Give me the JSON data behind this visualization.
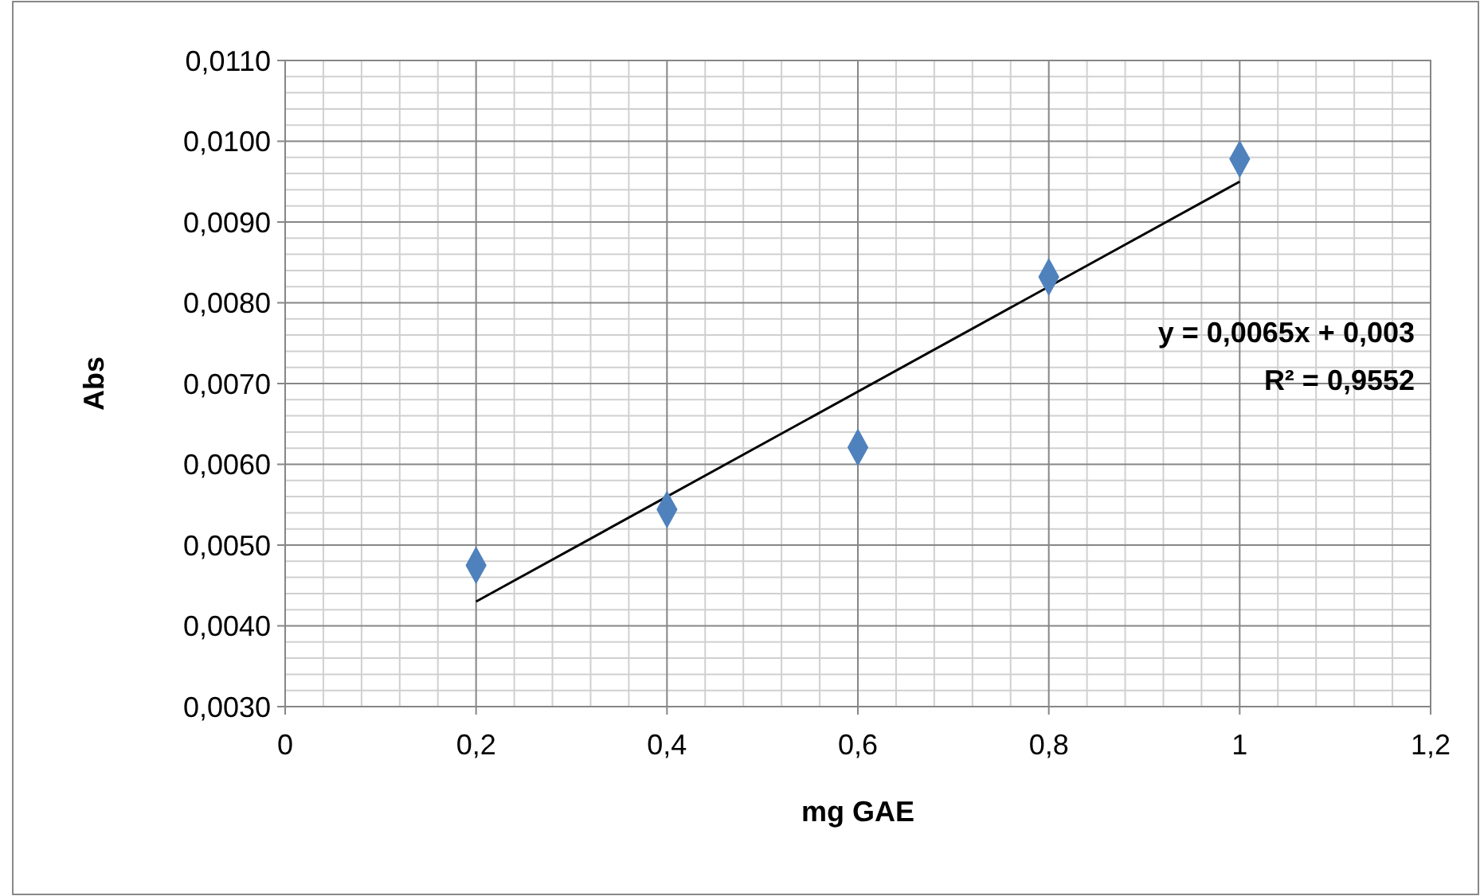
{
  "chart_data": {
    "type": "scatter",
    "xlabel": "mg GAE",
    "ylabel": "Abs",
    "xlim": [
      0,
      1.2
    ],
    "xticks": [
      0,
      {
        "value": 0.2,
        "label": "0,2"
      },
      {
        "value": 0.4,
        "label": "0,4"
      },
      {
        "value": 0.6,
        "label": "0,6"
      },
      {
        "value": 0.8,
        "label": "0,8"
      },
      1,
      {
        "value": 1.2,
        "label": "1,2"
      }
    ],
    "ylim": [
      0.003,
      0.011
    ],
    "yticks": [
      {
        "value": 0.003,
        "label": "0,0030"
      },
      {
        "value": 0.004,
        "label": "0,0040"
      },
      {
        "value": 0.005,
        "label": "0,0050"
      },
      {
        "value": 0.006,
        "label": "0,0060"
      },
      {
        "value": 0.007,
        "label": "0,0070"
      },
      {
        "value": 0.008,
        "label": "0,0080"
      },
      {
        "value": 0.009,
        "label": "0,0090"
      },
      {
        "value": 0.01,
        "label": "0,0100"
      },
      {
        "value": 0.011,
        "label": "0,0110"
      }
    ],
    "grid": true,
    "series": [
      {
        "color": "#4f81bd",
        "marker": "diamond",
        "x": [
          0.2,
          0.4,
          0.6,
          0.8,
          1
        ],
        "values": [
          0.00475,
          0.00544,
          0.00621,
          0.00832,
          0.00978
        ]
      },
      {
        "type": "line",
        "color": "#000000",
        "marker": "none",
        "line_style": "solid",
        "x": [
          0.2,
          1
        ],
        "values": [
          0.0043,
          0.0095
        ]
      }
    ],
    "annotations": [
      "y = 0,0065x + 0,003",
      "R² = 0,9552"
    ]
  }
}
